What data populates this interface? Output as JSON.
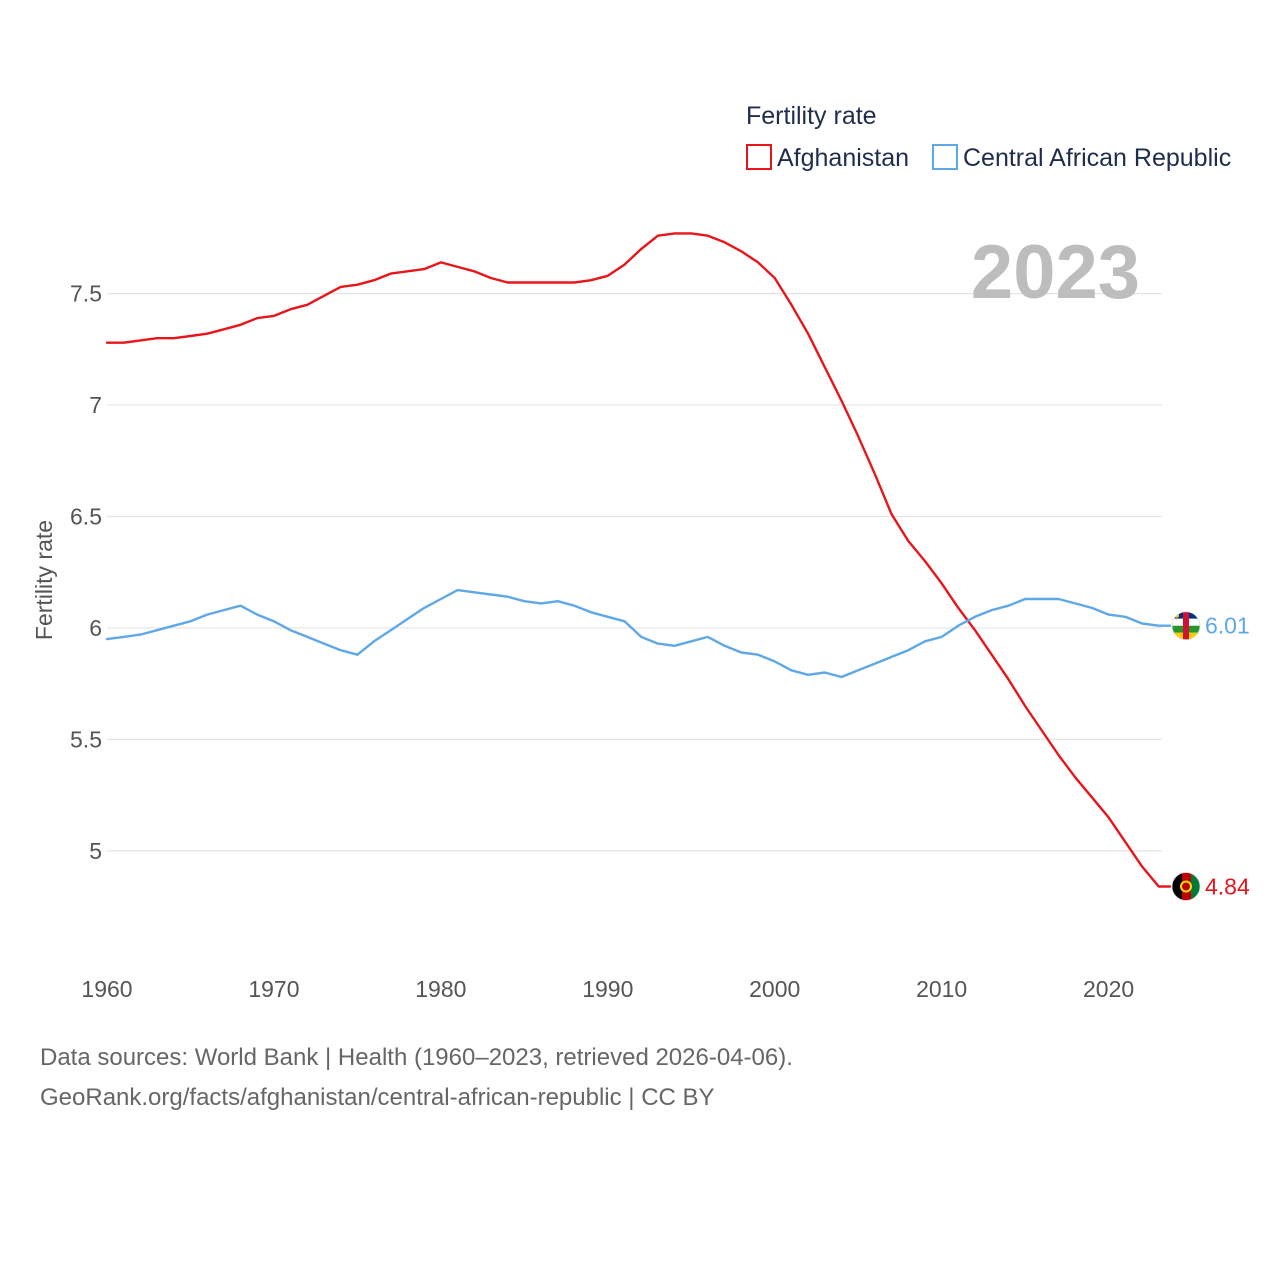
{
  "chart_data": {
    "type": "line",
    "title": "Fertility rate",
    "xlabel": "",
    "ylabel": "Fertility rate",
    "year_label": "2023",
    "x": [
      1960,
      1961,
      1962,
      1963,
      1964,
      1965,
      1966,
      1967,
      1968,
      1969,
      1970,
      1971,
      1972,
      1973,
      1974,
      1975,
      1976,
      1977,
      1978,
      1979,
      1980,
      1981,
      1982,
      1983,
      1984,
      1985,
      1986,
      1987,
      1988,
      1989,
      1990,
      1991,
      1992,
      1993,
      1994,
      1995,
      1996,
      1997,
      1998,
      1999,
      2000,
      2001,
      2002,
      2003,
      2004,
      2005,
      2006,
      2007,
      2008,
      2009,
      2010,
      2011,
      2012,
      2013,
      2014,
      2015,
      2016,
      2017,
      2018,
      2019,
      2020,
      2021,
      2022,
      2023
    ],
    "xlim": [
      1960,
      2023.2
    ],
    "ylim": [
      4.6,
      7.92
    ],
    "x_ticks": [
      1960,
      1970,
      1980,
      1990,
      2000,
      2010,
      2020
    ],
    "x_tick_labels": [
      "1960",
      "1970",
      "1980",
      "1990",
      "2000",
      "2010",
      "2020"
    ],
    "y_ticks": [
      5,
      5.5,
      6,
      6.5,
      7,
      7.5
    ],
    "y_tick_labels": [
      "5",
      "5.5",
      "6",
      "6.5",
      "7",
      "7.5"
    ],
    "grid": true,
    "legend_position": "top-right",
    "series": [
      {
        "name": "Afghanistan",
        "color": "#e8161b",
        "end_label": "4.84",
        "flag": "afghanistan-flag-icon",
        "values": [
          7.28,
          7.28,
          7.29,
          7.3,
          7.3,
          7.31,
          7.32,
          7.34,
          7.36,
          7.39,
          7.4,
          7.43,
          7.45,
          7.49,
          7.53,
          7.54,
          7.56,
          7.59,
          7.6,
          7.61,
          7.64,
          7.62,
          7.6,
          7.57,
          7.55,
          7.55,
          7.55,
          7.55,
          7.55,
          7.56,
          7.58,
          7.63,
          7.7,
          7.76,
          7.77,
          7.77,
          7.76,
          7.73,
          7.69,
          7.64,
          7.57,
          7.45,
          7.32,
          7.17,
          7.02,
          6.86,
          6.69,
          6.51,
          6.39,
          6.3,
          6.2,
          6.09,
          5.99,
          5.88,
          5.77,
          5.65,
          5.54,
          5.43,
          5.33,
          5.24,
          5.15,
          5.04,
          4.93,
          4.84
        ]
      },
      {
        "name": "Central African Republic",
        "color": "#5fa8e8",
        "end_label": "6.01",
        "flag": "central-african-republic-flag-icon",
        "values": [
          5.95,
          5.96,
          5.97,
          5.99,
          6.01,
          6.03,
          6.06,
          6.08,
          6.1,
          6.06,
          6.03,
          5.99,
          5.96,
          5.93,
          5.9,
          5.88,
          5.94,
          5.99,
          6.04,
          6.09,
          6.13,
          6.17,
          6.16,
          6.15,
          6.14,
          6.12,
          6.11,
          6.12,
          6.1,
          6.07,
          6.05,
          6.03,
          5.96,
          5.93,
          5.92,
          5.94,
          5.96,
          5.92,
          5.89,
          5.88,
          5.85,
          5.81,
          5.79,
          5.8,
          5.78,
          5.81,
          5.84,
          5.87,
          5.9,
          5.94,
          5.96,
          6.01,
          6.05,
          6.08,
          6.1,
          6.13,
          6.13,
          6.13,
          6.11,
          6.09,
          6.06,
          6.05,
          6.02,
          6.01
        ]
      }
    ]
  },
  "footer": {
    "line1": "Data sources: World Bank | Health (1960–2023, retrieved 2026-04-06).",
    "line2": "GeoRank.org/facts/afghanistan/central-african-republic | CC BY"
  }
}
